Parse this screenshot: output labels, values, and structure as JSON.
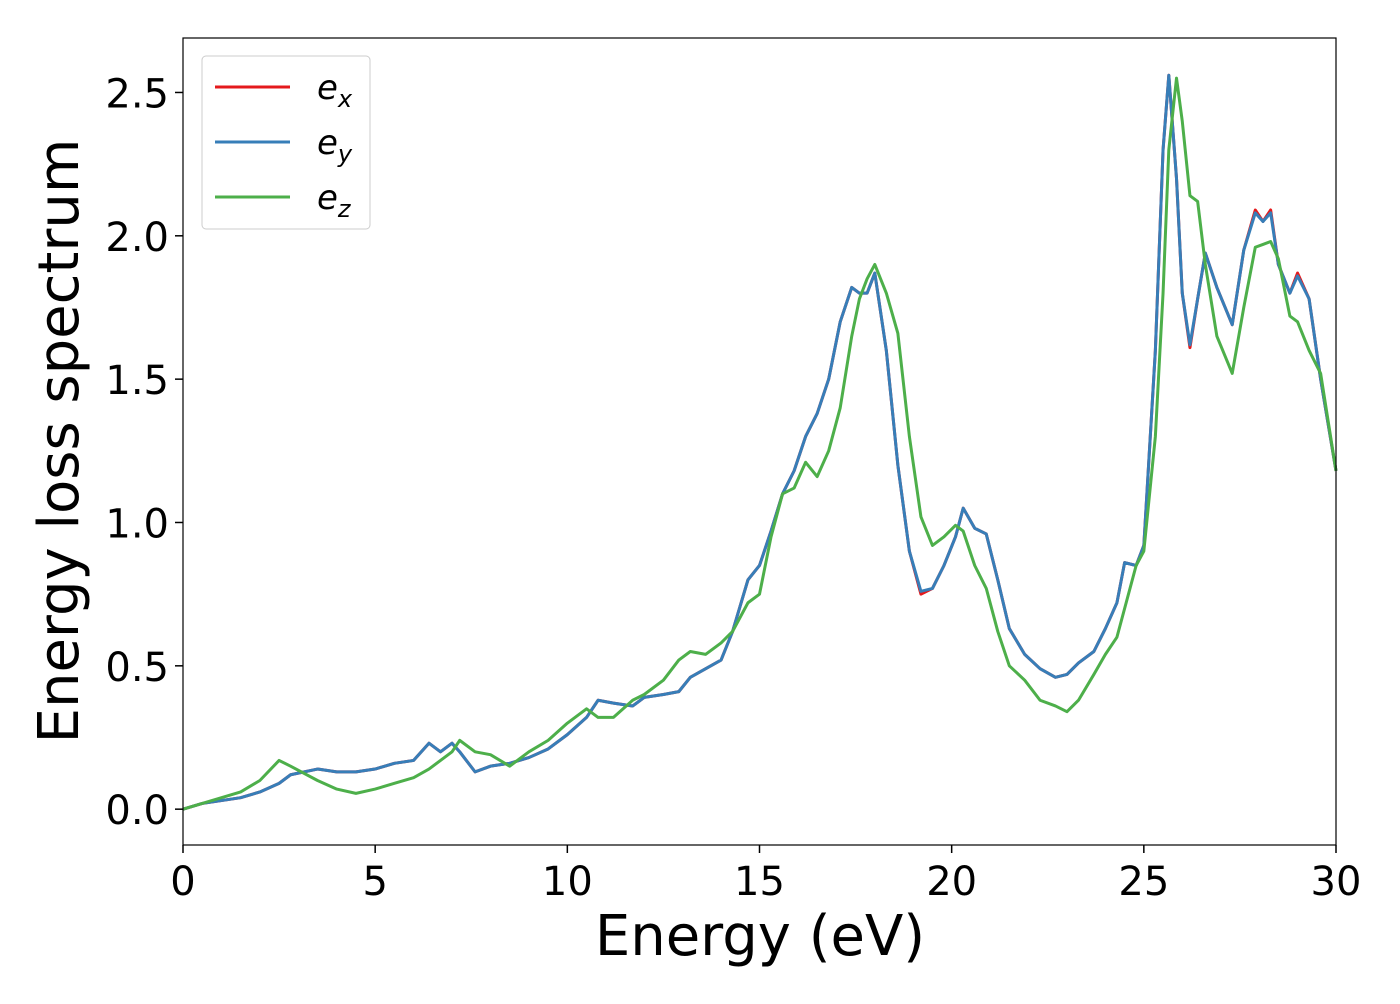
{
  "chart_data": {
    "type": "line",
    "xlabel": "Energy (eV)",
    "ylabel": "Energy loss spectrum",
    "x": [
      0,
      0.5,
      1,
      1.5,
      2,
      2.5,
      2.8,
      3.5,
      4,
      4.5,
      5,
      5.5,
      6,
      6.4,
      6.7,
      7,
      7.2,
      7.6,
      8,
      8.5,
      9,
      9.5,
      10,
      10.5,
      10.8,
      11.2,
      11.7,
      12,
      12.5,
      12.9,
      13.2,
      13.6,
      14,
      14.3,
      14.7,
      15,
      15.3,
      15.6,
      15.9,
      16.2,
      16.5,
      16.8,
      17.1,
      17.4,
      17.6,
      17.8,
      18,
      18.3,
      18.6,
      18.9,
      19.2,
      19.5,
      19.8,
      20.1,
      20.3,
      20.6,
      20.9,
      21.2,
      21.5,
      21.9,
      22.3,
      22.7,
      23,
      23.3,
      23.7,
      24,
      24.3,
      24.5,
      24.8,
      25,
      25.3,
      25.5,
      25.65,
      25.85,
      26,
      26.2,
      26.4,
      26.6,
      26.9,
      27.3,
      27.6,
      27.9,
      28.1,
      28.3,
      28.5,
      28.8,
      29,
      29.3,
      29.6,
      30
    ],
    "series": [
      {
        "name": "e_x",
        "color": "#e41a1c",
        "values": [
          0,
          0.02,
          0.03,
          0.04,
          0.06,
          0.09,
          0.12,
          0.14,
          0.13,
          0.13,
          0.14,
          0.16,
          0.17,
          0.23,
          0.2,
          0.23,
          0.2,
          0.13,
          0.15,
          0.16,
          0.18,
          0.21,
          0.26,
          0.32,
          0.38,
          0.37,
          0.36,
          0.39,
          0.4,
          0.41,
          0.46,
          0.49,
          0.52,
          0.62,
          0.8,
          0.85,
          0.97,
          1.1,
          1.18,
          1.3,
          1.38,
          1.5,
          1.7,
          1.82,
          1.8,
          1.8,
          1.87,
          1.6,
          1.2,
          0.9,
          0.75,
          0.77,
          0.85,
          0.95,
          1.05,
          0.98,
          0.96,
          0.8,
          0.63,
          0.54,
          0.49,
          0.46,
          0.47,
          0.51,
          0.55,
          0.63,
          0.72,
          0.86,
          0.85,
          0.92,
          1.6,
          2.3,
          2.56,
          2.2,
          1.8,
          1.61,
          1.78,
          1.94,
          1.82,
          1.69,
          1.95,
          2.09,
          2.05,
          2.09,
          1.9,
          1.8,
          1.87,
          1.78,
          1.5,
          1.18
        ]
      },
      {
        "name": "e_y",
        "color": "#377eb8",
        "values": [
          0,
          0.02,
          0.03,
          0.04,
          0.06,
          0.09,
          0.12,
          0.14,
          0.13,
          0.13,
          0.14,
          0.16,
          0.17,
          0.23,
          0.2,
          0.23,
          0.2,
          0.13,
          0.15,
          0.16,
          0.18,
          0.21,
          0.26,
          0.32,
          0.38,
          0.37,
          0.36,
          0.39,
          0.4,
          0.41,
          0.46,
          0.49,
          0.52,
          0.62,
          0.8,
          0.85,
          0.97,
          1.1,
          1.18,
          1.3,
          1.38,
          1.5,
          1.7,
          1.82,
          1.8,
          1.8,
          1.87,
          1.6,
          1.2,
          0.9,
          0.76,
          0.77,
          0.85,
          0.95,
          1.05,
          0.98,
          0.96,
          0.8,
          0.63,
          0.54,
          0.49,
          0.46,
          0.47,
          0.51,
          0.55,
          0.63,
          0.72,
          0.86,
          0.85,
          0.92,
          1.6,
          2.3,
          2.56,
          2.2,
          1.8,
          1.62,
          1.78,
          1.94,
          1.82,
          1.69,
          1.95,
          2.08,
          2.05,
          2.08,
          1.9,
          1.8,
          1.86,
          1.78,
          1.5,
          1.18
        ]
      },
      {
        "name": "e_z",
        "color": "#4daf4a",
        "values": [
          0,
          0.02,
          0.04,
          0.06,
          0.1,
          0.17,
          0.15,
          0.1,
          0.07,
          0.055,
          0.07,
          0.09,
          0.11,
          0.14,
          0.17,
          0.2,
          0.24,
          0.2,
          0.19,
          0.15,
          0.2,
          0.24,
          0.3,
          0.35,
          0.32,
          0.32,
          0.38,
          0.4,
          0.45,
          0.52,
          0.55,
          0.54,
          0.58,
          0.62,
          0.72,
          0.75,
          0.95,
          1.1,
          1.12,
          1.21,
          1.16,
          1.25,
          1.4,
          1.65,
          1.78,
          1.85,
          1.9,
          1.8,
          1.66,
          1.3,
          1.02,
          0.92,
          0.95,
          0.99,
          0.97,
          0.85,
          0.77,
          0.62,
          0.5,
          0.45,
          0.38,
          0.36,
          0.34,
          0.38,
          0.47,
          0.54,
          0.6,
          0.7,
          0.85,
          0.9,
          1.3,
          1.8,
          2.3,
          2.55,
          2.4,
          2.14,
          2.12,
          1.9,
          1.65,
          1.52,
          1.75,
          1.96,
          1.97,
          1.98,
          1.92,
          1.72,
          1.7,
          1.6,
          1.52,
          1.18
        ]
      }
    ],
    "xlim": [
      0,
      30
    ],
    "xticks": [
      0,
      5,
      10,
      15,
      20,
      25,
      30
    ],
    "ylim": [
      -0.125,
      2.69
    ],
    "yticks": [
      {
        "value": 0,
        "label": "0.0"
      },
      0.5,
      {
        "value": 1,
        "label": "1.0"
      },
      1.5,
      {
        "value": 2,
        "label": "2.0"
      },
      2.5
    ],
    "grid": false,
    "legend": "upper left"
  }
}
